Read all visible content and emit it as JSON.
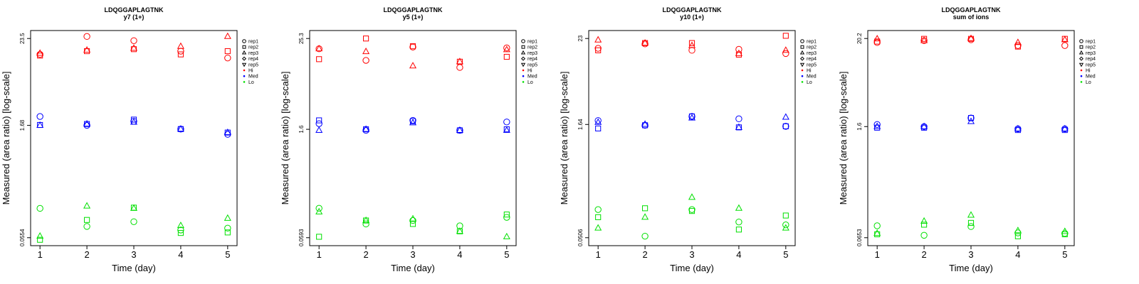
{
  "chart_data": [
    {
      "type": "scatter",
      "title": "LDQGGAPLAGTNK",
      "subtitle": "y7 (1+)",
      "xlabel": "Time (day)",
      "ylabel": "Measured (area ratio) [log-scale]",
      "log_y": true,
      "ylim": [
        0.0554,
        23.5
      ],
      "yticks": [
        "0.0554",
        "1.68",
        "23.5"
      ],
      "xticks": [
        1,
        2,
        3,
        4,
        5
      ],
      "legend_position": "right",
      "legend_shapes": [
        {
          "label": "rep1",
          "marker": "circle"
        },
        {
          "label": "rep2",
          "marker": "square"
        },
        {
          "label": "rep3",
          "marker": "triangle"
        },
        {
          "label": "rep4",
          "marker": "diamond"
        },
        {
          "label": "rep5",
          "marker": "triangle-down"
        }
      ],
      "legend_colors": [
        {
          "label": "Hi",
          "color": "#ff0000"
        },
        {
          "label": "Med",
          "color": "#0000ff"
        },
        {
          "label": "Lo",
          "color": "#00e000"
        }
      ],
      "x": [
        1,
        2,
        3,
        4,
        5
      ],
      "groups": [
        {
          "level": "Hi",
          "reps": {
            "rep1": [
              14.5,
              25.0,
              22.0,
              16.0,
              13.0
            ],
            "rep2": [
              14.0,
              16.0,
              17.0,
              14.5,
              16.0
            ],
            "rep3": [
              15.0,
              16.5,
              17.5,
              18.5,
              25.0
            ]
          }
        },
        {
          "level": "Med",
          "reps": {
            "rep1": [
              2.2,
              1.68,
              1.9,
              1.5,
              1.28
            ],
            "rep2": [
              1.7,
              1.75,
              2.0,
              1.5,
              1.35
            ],
            "rep3": [
              1.68,
              1.75,
              1.85,
              1.5,
              1.35
            ]
          }
        },
        {
          "level": "Lo",
          "reps": {
            "rep1": [
              0.135,
              0.078,
              0.09,
              0.07,
              0.074
            ],
            "rep2": [
              0.052,
              0.095,
              0.138,
              0.064,
              0.065
            ],
            "rep3": [
              0.058,
              0.145,
              0.135,
              0.08,
              0.1
            ]
          }
        }
      ]
    },
    {
      "type": "scatter",
      "title": "LDQGGAPLAGTNK",
      "subtitle": "y5 (1+)",
      "xlabel": "Time (day)",
      "ylabel": "Measured (area ratio) [log-scale]",
      "log_y": true,
      "ylim": [
        0.0593,
        25.3
      ],
      "yticks": [
        "0.0593",
        "1.6",
        "25.3"
      ],
      "xticks": [
        1,
        2,
        3,
        4,
        5
      ],
      "legend_position": "right",
      "legend_shapes": [
        {
          "label": "rep1",
          "marker": "circle"
        },
        {
          "label": "rep2",
          "marker": "square"
        },
        {
          "label": "rep3",
          "marker": "triangle"
        },
        {
          "label": "rep4",
          "marker": "diamond"
        },
        {
          "label": "rep5",
          "marker": "triangle-down"
        }
      ],
      "legend_colors": [
        {
          "label": "Hi",
          "color": "#ff0000"
        },
        {
          "label": "Med",
          "color": "#0000ff"
        },
        {
          "label": "Lo",
          "color": "#00e000"
        }
      ],
      "x": [
        1,
        2,
        3,
        4,
        5
      ],
      "groups": [
        {
          "level": "Hi",
          "reps": {
            "rep1": [
              18.5,
              13.0,
              19.5,
              10.5,
              19.0
            ],
            "rep2": [
              13.5,
              25.3,
              20.0,
              12.5,
              14.5
            ],
            "rep3": [
              18.5,
              17.0,
              11.0,
              12.5,
              18.0
            ]
          }
        },
        {
          "level": "Med",
          "reps": {
            "rep1": [
              1.9,
              1.55,
              2.1,
              1.55,
              2.0
            ],
            "rep2": [
              2.1,
              1.6,
              2.05,
              1.55,
              1.6
            ],
            "rep3": [
              1.55,
              1.6,
              1.95,
              1.55,
              1.55
            ]
          }
        },
        {
          "level": "Lo",
          "reps": {
            "rep1": [
              0.145,
              0.09,
              0.1,
              0.085,
              0.11
            ],
            "rep2": [
              0.061,
              0.1,
              0.09,
              0.072,
              0.12
            ],
            "rep3": [
              0.13,
              0.1,
              0.105,
              0.072,
              0.061
            ]
          }
        }
      ]
    },
    {
      "type": "scatter",
      "title": "LDQGGAPLAGTNK",
      "subtitle": "y10 (1+)",
      "xlabel": "Time (day)",
      "ylabel": "Measured (area ratio) [log-scale]",
      "log_y": true,
      "ylim": [
        0.0506,
        23
      ],
      "yticks": [
        "0.0506",
        "1.64",
        "23"
      ],
      "xticks": [
        1,
        2,
        3,
        4,
        5
      ],
      "legend_position": "right",
      "legend_shapes": [
        {
          "label": "rep1",
          "marker": "circle"
        },
        {
          "label": "rep2",
          "marker": "square"
        },
        {
          "label": "rep3",
          "marker": "triangle"
        },
        {
          "label": "rep4",
          "marker": "diamond"
        },
        {
          "label": "rep5",
          "marker": "triangle-down"
        }
      ],
      "legend_colors": [
        {
          "label": "Hi",
          "color": "#ff0000"
        },
        {
          "label": "Med",
          "color": "#0000ff"
        },
        {
          "label": "Lo",
          "color": "#00e000"
        }
      ],
      "x": [
        1,
        2,
        3,
        4,
        5
      ],
      "groups": [
        {
          "level": "Hi",
          "reps": {
            "rep1": [
              17.0,
              19.5,
              16.0,
              16.5,
              14.5
            ],
            "rep2": [
              16.0,
              20.0,
              20.0,
              14.0,
              25.0
            ],
            "rep3": [
              22.0,
              20.0,
              18.5,
              14.5,
              16.0
            ]
          }
        },
        {
          "level": "Med",
          "reps": {
            "rep1": [
              1.85,
              1.6,
              2.1,
              1.95,
              1.55
            ],
            "rep2": [
              1.45,
              1.6,
              2.1,
              1.5,
              1.55
            ],
            "rep3": [
              1.75,
              1.65,
              2.0,
              1.5,
              2.05
            ]
          }
        },
        {
          "level": "Lo",
          "reps": {
            "rep1": [
              0.12,
              0.053,
              0.12,
              0.082,
              0.075
            ],
            "rep2": [
              0.095,
              0.125,
              0.115,
              0.065,
              0.1
            ],
            "rep3": [
              0.068,
              0.095,
              0.175,
              0.125,
              0.068
            ]
          }
        }
      ]
    },
    {
      "type": "scatter",
      "title": "LDQGGAPLAGTNK",
      "subtitle": "sum of ions",
      "xlabel": "Time (day)",
      "ylabel": "Measured (area ratio) [log-scale]",
      "log_y": true,
      "ylim": [
        0.0653,
        20.2
      ],
      "yticks": [
        "0.0653",
        "1.6",
        "20.2"
      ],
      "xticks": [
        1,
        2,
        3,
        4,
        5
      ],
      "legend_position": "right",
      "legend_shapes": [
        {
          "label": "rep1",
          "marker": "circle"
        },
        {
          "label": "rep2",
          "marker": "square"
        },
        {
          "label": "rep3",
          "marker": "triangle"
        },
        {
          "label": "rep4",
          "marker": "diamond"
        },
        {
          "label": "rep5",
          "marker": "triangle-down"
        }
      ],
      "legend_colors": [
        {
          "label": "Hi",
          "color": "#ff0000"
        },
        {
          "label": "Med",
          "color": "#0000ff"
        },
        {
          "label": "Lo",
          "color": "#00e000"
        }
      ],
      "x": [
        1,
        2,
        3,
        4,
        5
      ],
      "groups": [
        {
          "level": "Hi",
          "reps": {
            "rep1": [
              18.0,
              19.0,
              19.5,
              16.5,
              16.5
            ],
            "rep2": [
              18.5,
              20.0,
              20.0,
              16.0,
              20.0
            ],
            "rep3": [
              20.0,
              19.0,
              20.2,
              18.0,
              19.5
            ]
          }
        },
        {
          "level": "Med",
          "reps": {
            "rep1": [
              1.7,
              1.6,
              2.05,
              1.5,
              1.5
            ],
            "rep2": [
              1.55,
              1.55,
              2.05,
              1.45,
              1.45
            ],
            "rep3": [
              1.6,
              1.6,
              1.85,
              1.5,
              1.5
            ]
          }
        },
        {
          "level": "Lo",
          "reps": {
            "rep1": [
              0.092,
              0.07,
              0.09,
              0.075,
              0.074
            ],
            "rep2": [
              0.072,
              0.095,
              0.1,
              0.068,
              0.072
            ],
            "rep3": [
              0.074,
              0.105,
              0.125,
              0.08,
              0.078
            ]
          }
        }
      ]
    }
  ]
}
